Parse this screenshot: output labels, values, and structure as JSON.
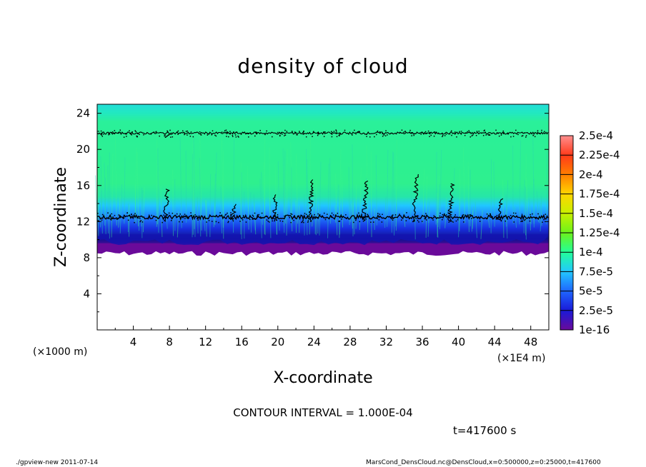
{
  "chart_data": {
    "type": "heatmap",
    "title": "density of cloud",
    "xlabel": "X-coordinate",
    "ylabel": "Z-coordinate",
    "x_unit_label": "(×1000 m)",
    "x_scale_label": "(×1E4 m)",
    "x_ticks": [
      "4",
      "8",
      "12",
      "16",
      "20",
      "24",
      "28",
      "32",
      "36",
      "40",
      "44",
      "48"
    ],
    "y_ticks": [
      "4",
      "8",
      "12",
      "16",
      "20",
      "24"
    ],
    "xlim": [
      0,
      50
    ],
    "ylim": [
      0,
      25
    ],
    "colorbar": {
      "labels": [
        "1e-16",
        "2.5e-5",
        "5e-5",
        "7.5e-5",
        "1e-4",
        "1.25e-4",
        "1.5e-4",
        "1.75e-4",
        "2e-4",
        "2.25e-4",
        "2.5e-4"
      ],
      "colors": [
        "#6a0a9a",
        "#1a1ad8",
        "#1f66ff",
        "#22c8ff",
        "#22ff99",
        "#6cf21a",
        "#c8f000",
        "#ffd500",
        "#ff7f00",
        "#ff3a1a",
        "#ff8f8f"
      ]
    },
    "field": {
      "cloud_bottom_z": 9,
      "contour_levels_z": [
        12.5,
        21.8
      ],
      "dense_streaks_x": [
        7.5,
        15,
        19.5,
        23.5,
        29.5,
        35,
        39,
        44.5
      ]
    },
    "contour_interval": "CONTOUR INTERVAL = 1.000E-04",
    "time_label": "t=417600 s",
    "legend_placement": "right"
  },
  "footer": {
    "left": "./gpview-new   2011-07-14",
    "right": "MarsCond_DensCloud.nc@DensCloud,x=0:500000,z=0:25000,t=417600"
  },
  "colors": {
    "background": "#ffffff",
    "empty_region": "#ffffff",
    "contour": "#000000"
  }
}
